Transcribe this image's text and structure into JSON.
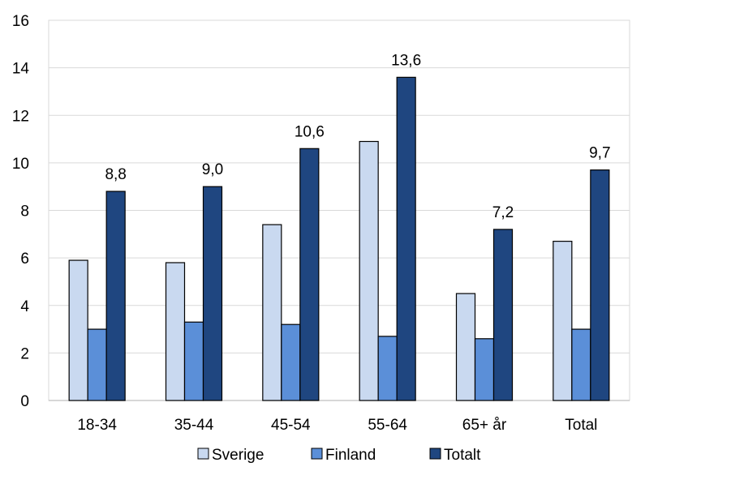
{
  "chart_data": {
    "type": "bar",
    "title": "",
    "xlabel": "",
    "ylabel": "",
    "ylim": [
      0,
      16
    ],
    "yticks": [
      0,
      2,
      4,
      6,
      8,
      10,
      12,
      14,
      16
    ],
    "grid": true,
    "legend_position": "bottom",
    "categories": [
      "18-34",
      "35-44",
      "45-54",
      "55-64",
      "65+ år",
      "Total"
    ],
    "series": [
      {
        "name": "Sverige",
        "color": "#c9d9f0",
        "values": [
          5.9,
          5.8,
          7.4,
          10.9,
          4.5,
          6.7
        ]
      },
      {
        "name": "Finland",
        "color": "#5b8fd8",
        "values": [
          3.0,
          3.3,
          3.2,
          2.7,
          2.6,
          3.0
        ]
      },
      {
        "name": "Totalt",
        "color": "#1f4680",
        "values": [
          8.8,
          9.0,
          10.6,
          13.6,
          7.2,
          9.7
        ]
      }
    ],
    "data_labels": {
      "series": "Totalt",
      "labels": [
        "8,8",
        "9,0",
        "10,6",
        "13,6",
        "7,2",
        "9,7"
      ]
    }
  }
}
